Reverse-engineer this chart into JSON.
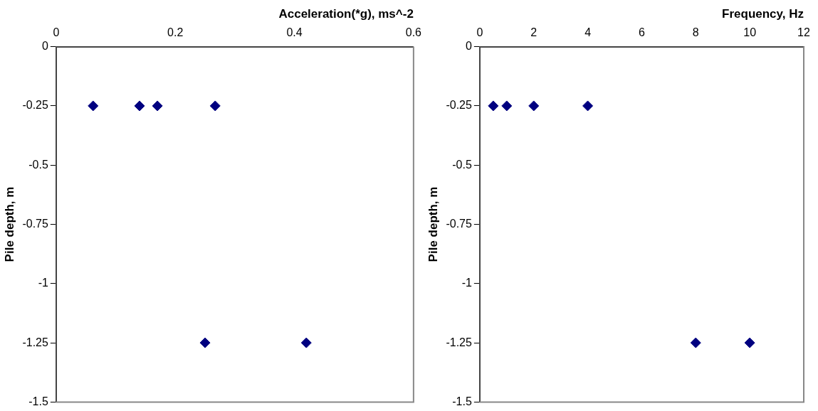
{
  "chart_data": [
    {
      "type": "scatter",
      "xlabel": "Acceleration(*g), ms^-2",
      "ylabel": "Pile depth, m",
      "x": [
        0.062,
        0.14,
        0.17,
        0.267,
        0.25,
        0.42
      ],
      "values": [
        -0.25,
        -0.25,
        -0.25,
        -0.25,
        -1.25,
        -1.25
      ],
      "color": "#000080",
      "marker": "diamond",
      "xlim": [
        0,
        0.6
      ],
      "xticks": [
        0,
        0.2,
        0.4,
        0.6
      ],
      "ylim": [
        -1.5,
        0
      ],
      "yticks": [
        -1.5,
        -1.25,
        -1,
        -0.75,
        -0.5,
        -0.25,
        0
      ],
      "grid": false,
      "legend": false
    },
    {
      "type": "scatter",
      "xlabel": "Frequency, Hz",
      "ylabel": "Pile depth, m",
      "x": [
        0.5,
        1,
        2,
        4,
        8,
        10
      ],
      "values": [
        -0.25,
        -0.25,
        -0.25,
        -0.25,
        -1.25,
        -1.25
      ],
      "color": "#000080",
      "marker": "diamond",
      "xlim": [
        0,
        12
      ],
      "xticks": [
        0,
        2,
        4,
        6,
        8,
        10,
        12
      ],
      "ylim": [
        -1.5,
        0
      ],
      "yticks": [
        -1.5,
        -1.25,
        -1,
        -0.75,
        -0.5,
        -0.25,
        0
      ],
      "grid": false,
      "legend": false
    }
  ]
}
